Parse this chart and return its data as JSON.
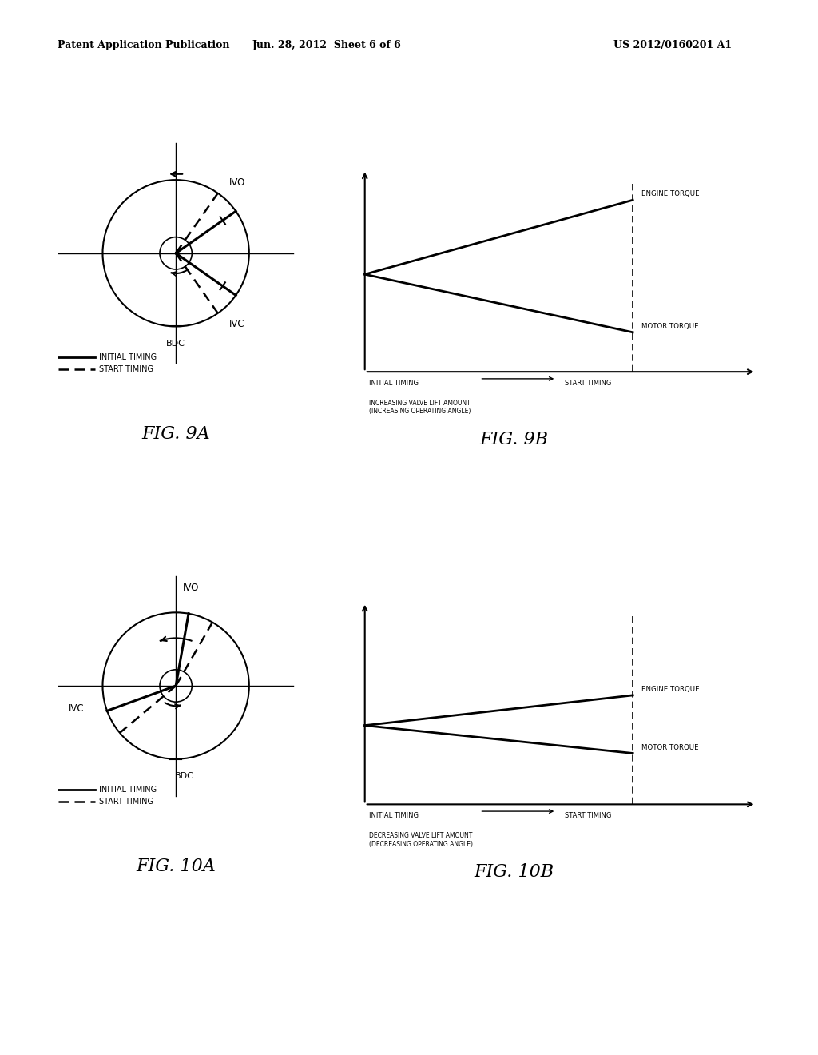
{
  "bg_color": "#ffffff",
  "header_left": "Patent Application Publication",
  "header_center": "Jun. 28, 2012  Sheet 6 of 6",
  "header_right": "US 2012/0160201 A1",
  "fig9a_label": "FIG. 9A",
  "fig9b_label": "FIG. 9B",
  "fig10a_label": "FIG. 10A",
  "fig10b_label": "FIG. 10B",
  "legend_initial": "INITIAL TIMING",
  "legend_start": "START TIMING",
  "engine_torque_label": "ENGINE TORQUE",
  "motor_torque_label": "MOTOR TORQUE",
  "sub_label_9b": "INCREASING VALVE LIFT AMOUNT\n(INCREASING OPERATING ANGLE)",
  "sub_label_10b": "DECREASING VALVE LIFT AMOUNT\n(DECREASING OPERATING ANGLE)",
  "bdc_label": "BDC",
  "ivo_label": "IVO",
  "ivc_label": "IVC",
  "fig9a_ivo_solid": 35,
  "fig9a_ivc_solid": -35,
  "fig9a_ivo_dashed": 55,
  "fig9a_ivc_dashed": -55,
  "fig10a_ivo_solid": 80,
  "fig10a_ivc_solid": 200,
  "fig10a_ivo_dashed": 60,
  "fig10a_ivc_dashed": 220
}
